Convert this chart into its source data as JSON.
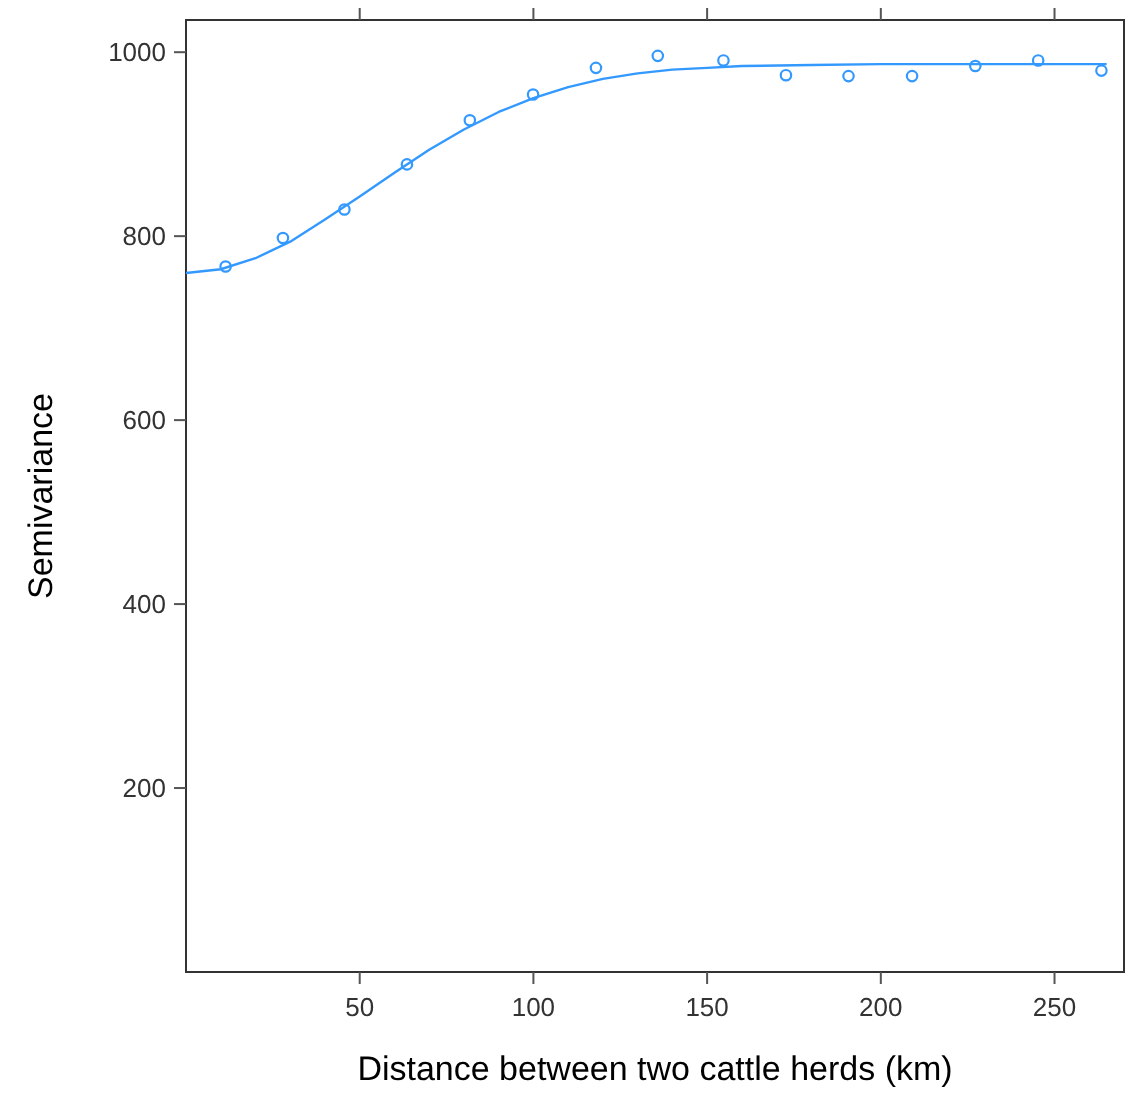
{
  "chart_data": {
    "type": "scatter",
    "xlabel": "Distance between two cattle herds (km)",
    "ylabel": "Semivariance",
    "xlim": [
      0,
      270
    ],
    "ylim": [
      0,
      1035
    ],
    "xticks": [
      50,
      100,
      150,
      200,
      250
    ],
    "yticks": [
      200,
      400,
      600,
      800,
      1000
    ],
    "grid": false,
    "series": [
      {
        "marker": "circle",
        "color": "#3399ff",
        "x": [
          11.4,
          27.9,
          45.6,
          63.6,
          81.7,
          99.9,
          118,
          135.8,
          154.7,
          172.7,
          190.7,
          209,
          227.2,
          245.3,
          263.5
        ],
        "values": [
          767,
          798,
          829,
          878,
          926,
          954,
          983,
          996,
          991,
          975,
          974,
          974,
          985,
          991,
          980
        ]
      },
      {
        "type": "line",
        "marker": "none",
        "line_style": "solid",
        "color": "#3399ff",
        "x": [
          0,
          10,
          20,
          30,
          40,
          50,
          60,
          70,
          80,
          90,
          100,
          110,
          120,
          130,
          140,
          150,
          160,
          180,
          200,
          230,
          265
        ],
        "values": [
          760,
          764,
          776,
          794,
          818,
          843,
          869,
          894,
          916,
          935,
          950,
          962,
          971,
          977,
          981,
          983,
          985,
          986,
          987,
          987,
          987
        ]
      }
    ]
  }
}
